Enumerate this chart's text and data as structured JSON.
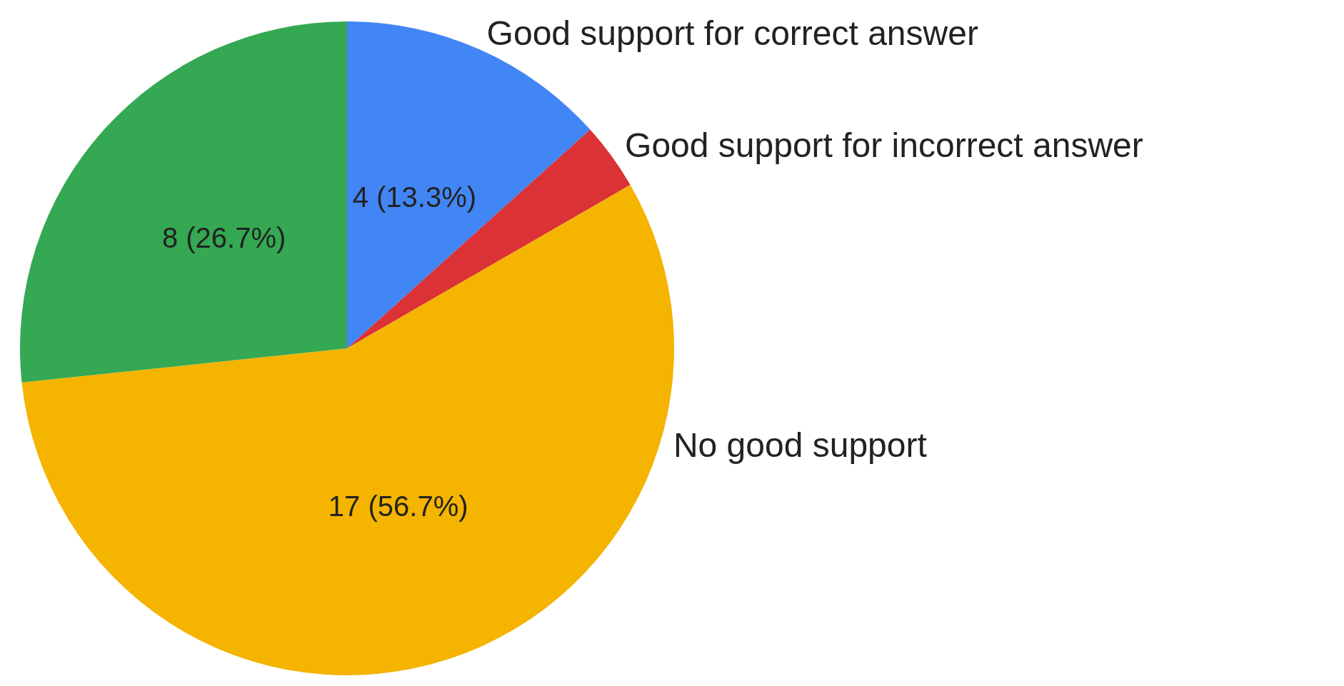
{
  "chart_data": {
    "type": "pie",
    "categories": [
      "Good support for correct answer",
      "Good support for incorrect answer",
      "No good support",
      null
    ],
    "values": [
      4,
      1,
      17,
      8
    ],
    "colors": [
      "#4285f4",
      "#db3236",
      "#f4b400",
      "#34a853"
    ],
    "value_labels": [
      "4 (13.3%)",
      null,
      "17 (56.7%)",
      "8 (26.7%)"
    ],
    "legend": false
  }
}
